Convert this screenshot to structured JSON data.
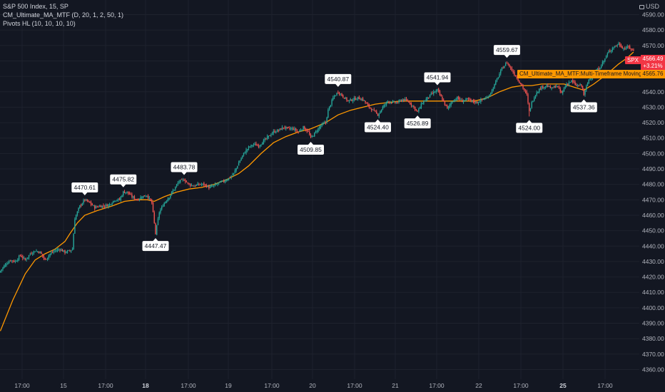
{
  "legend": {
    "symbol": "S&P 500 Index, 15, SP",
    "indicator_ma": "CM_Ultimate_MA_MTF (D, 20, 1, 2, 50, 1)",
    "indicator_pivots": "Pivots HL (10, 10, 10, 10)"
  },
  "currency": "USD",
  "last_price": {
    "symbol_tag": "SPX",
    "price": "4566.49",
    "change": "+3.21%"
  },
  "ma_overlay": {
    "label": "CM_Ultimate_MA_MTF:Multi-Timeframe Moving Avg",
    "price": "4565.76"
  },
  "colors": {
    "background": "#131722",
    "grid": "#1e222d",
    "up": "#26a69a",
    "down": "#ef5350",
    "ma_line": "#ff9800",
    "axis_text": "#b2b5be"
  },
  "chart_data": {
    "type": "line",
    "ylim": [
      4355,
      4595
    ],
    "y_ticks": [
      4360,
      4370,
      4380,
      4390,
      4400,
      4410,
      4420,
      4430,
      4440,
      4450,
      4460,
      4470,
      4480,
      4490,
      4500,
      4510,
      4520,
      4530,
      4540,
      4550,
      4560,
      4570,
      4580,
      4590
    ],
    "x_ticks": [
      "17:00",
      "15",
      "17:00",
      "18",
      "17:00",
      "19",
      "17:00",
      "20",
      "17:00",
      "21",
      "17:00",
      "22",
      "17:00",
      "25",
      "17:00"
    ],
    "x_ticks_bold": [
      "18",
      "25"
    ],
    "price_path": [
      [
        0,
        4424
      ],
      [
        4,
        4428
      ],
      [
        8,
        4431
      ],
      [
        12,
        4430
      ],
      [
        16,
        4434
      ],
      [
        20,
        4431
      ],
      [
        24,
        4435
      ],
      [
        28,
        4437
      ],
      [
        32,
        4436
      ],
      [
        36,
        4431
      ],
      [
        40,
        4435
      ],
      [
        44,
        4437
      ],
      [
        48,
        4438
      ],
      [
        52,
        4436
      ],
      [
        56,
        4437
      ],
      [
        58,
        4438
      ],
      [
        60,
        4458
      ],
      [
        64,
        4466
      ],
      [
        68,
        4470
      ],
      [
        72,
        4468
      ],
      [
        76,
        4465
      ],
      [
        80,
        4466
      ],
      [
        84,
        4466
      ],
      [
        88,
        4467
      ],
      [
        92,
        4470
      ],
      [
        96,
        4470
      ],
      [
        99,
        4475
      ],
      [
        102,
        4475
      ],
      [
        106,
        4472
      ],
      [
        110,
        4470
      ],
      [
        114,
        4472
      ],
      [
        118,
        4473
      ],
      [
        122,
        4468
      ],
      [
        125,
        4448
      ],
      [
        128,
        4462
      ],
      [
        132,
        4468
      ],
      [
        136,
        4472
      ],
      [
        140,
        4477
      ],
      [
        144,
        4482
      ],
      [
        148,
        4483
      ],
      [
        152,
        4480
      ],
      [
        156,
        4479
      ],
      [
        160,
        4480
      ],
      [
        164,
        4480
      ],
      [
        168,
        4478
      ],
      [
        172,
        4479
      ],
      [
        176,
        4481
      ],
      [
        180,
        4482
      ],
      [
        184,
        4484
      ],
      [
        188,
        4487
      ],
      [
        192,
        4494
      ],
      [
        196,
        4500
      ],
      [
        200,
        4504
      ],
      [
        204,
        4506
      ],
      [
        208,
        4505
      ],
      [
        212,
        4508
      ],
      [
        216,
        4511
      ],
      [
        220,
        4514
      ],
      [
        224,
        4515
      ],
      [
        228,
        4517
      ],
      [
        232,
        4516
      ],
      [
        236,
        4516
      ],
      [
        240,
        4514
      ],
      [
        244,
        4517
      ],
      [
        248,
        4514
      ],
      [
        250,
        4510
      ],
      [
        254,
        4514
      ],
      [
        258,
        4518
      ],
      [
        262,
        4520
      ],
      [
        264,
        4528
      ],
      [
        268,
        4536
      ],
      [
        272,
        4540
      ],
      [
        276,
        4537
      ],
      [
        280,
        4534
      ],
      [
        284,
        4535
      ],
      [
        288,
        4536
      ],
      [
        292,
        4535
      ],
      [
        296,
        4531
      ],
      [
        300,
        4528
      ],
      [
        304,
        4525
      ],
      [
        308,
        4530
      ],
      [
        312,
        4534
      ],
      [
        316,
        4533
      ],
      [
        320,
        4533
      ],
      [
        324,
        4535
      ],
      [
        328,
        4534
      ],
      [
        332,
        4531
      ],
      [
        336,
        4527
      ],
      [
        340,
        4533
      ],
      [
        344,
        4536
      ],
      [
        348,
        4539
      ],
      [
        352,
        4541
      ],
      [
        356,
        4535
      ],
      [
        360,
        4529
      ],
      [
        364,
        4534
      ],
      [
        368,
        4536
      ],
      [
        372,
        4534
      ],
      [
        376,
        4535
      ],
      [
        380,
        4534
      ],
      [
        384,
        4533
      ],
      [
        388,
        4535
      ],
      [
        392,
        4536
      ],
      [
        396,
        4541
      ],
      [
        400,
        4548
      ],
      [
        404,
        4555
      ],
      [
        408,
        4559
      ],
      [
        412,
        4554
      ],
      [
        416,
        4549
      ],
      [
        420,
        4544
      ],
      [
        424,
        4538
      ],
      [
        426,
        4527
      ],
      [
        428,
        4533
      ],
      [
        432,
        4540
      ],
      [
        436,
        4543
      ],
      [
        440,
        4544
      ],
      [
        444,
        4542
      ],
      [
        448,
        4544
      ],
      [
        452,
        4539
      ],
      [
        456,
        4545
      ],
      [
        460,
        4547
      ],
      [
        464,
        4544
      ],
      [
        468,
        4544
      ],
      [
        470,
        4538
      ],
      [
        474,
        4548
      ],
      [
        478,
        4552
      ],
      [
        482,
        4555
      ],
      [
        486,
        4560
      ],
      [
        490,
        4566
      ],
      [
        494,
        4569
      ],
      [
        498,
        4571
      ],
      [
        502,
        4568
      ],
      [
        506,
        4569
      ],
      [
        510,
        4566.49
      ]
    ],
    "ma_path": [
      [
        0,
        4385
      ],
      [
        10,
        4405
      ],
      [
        20,
        4422
      ],
      [
        28,
        4431
      ],
      [
        36,
        4435
      ],
      [
        44,
        4438
      ],
      [
        52,
        4443
      ],
      [
        56,
        4448
      ],
      [
        62,
        4455
      ],
      [
        68,
        4460
      ],
      [
        78,
        4463
      ],
      [
        90,
        4466
      ],
      [
        100,
        4469
      ],
      [
        110,
        4470
      ],
      [
        118,
        4470
      ],
      [
        124,
        4469
      ],
      [
        132,
        4472
      ],
      [
        142,
        4475
      ],
      [
        152,
        4477
      ],
      [
        162,
        4478
      ],
      [
        172,
        4480
      ],
      [
        182,
        4483
      ],
      [
        192,
        4487
      ],
      [
        200,
        4492
      ],
      [
        210,
        4500
      ],
      [
        220,
        4507
      ],
      [
        230,
        4511
      ],
      [
        240,
        4514
      ],
      [
        250,
        4516
      ],
      [
        262,
        4520
      ],
      [
        272,
        4525
      ],
      [
        282,
        4528
      ],
      [
        292,
        4530
      ],
      [
        302,
        4532
      ],
      [
        312,
        4533
      ],
      [
        322,
        4534
      ],
      [
        332,
        4534
      ],
      [
        342,
        4534
      ],
      [
        352,
        4534
      ],
      [
        362,
        4534
      ],
      [
        372,
        4534
      ],
      [
        382,
        4534
      ],
      [
        392,
        4536
      ],
      [
        402,
        4540
      ],
      [
        412,
        4543
      ],
      [
        420,
        4544
      ],
      [
        428,
        4544
      ],
      [
        436,
        4545
      ],
      [
        444,
        4545
      ],
      [
        454,
        4545
      ],
      [
        462,
        4543
      ],
      [
        470,
        4541
      ],
      [
        478,
        4545
      ],
      [
        488,
        4551
      ],
      [
        498,
        4558
      ],
      [
        505,
        4562
      ],
      [
        510,
        4565.76
      ]
    ],
    "pivots": [
      {
        "label": "4470.61",
        "t": 68,
        "value": 4470.61,
        "kind": "high"
      },
      {
        "label": "4475.82",
        "t": 99,
        "value": 4475.82,
        "kind": "high"
      },
      {
        "label": "4447.47",
        "t": 125,
        "value": 4447.47,
        "kind": "low"
      },
      {
        "label": "4483.78",
        "t": 148,
        "value": 4483.78,
        "kind": "high"
      },
      {
        "label": "4509.85",
        "t": 250,
        "value": 4509.85,
        "kind": "low"
      },
      {
        "label": "4540.87",
        "t": 272,
        "value": 4540.87,
        "kind": "high"
      },
      {
        "label": "4524.40",
        "t": 304,
        "value": 4524.4,
        "kind": "low"
      },
      {
        "label": "4526.89",
        "t": 336,
        "value": 4526.89,
        "kind": "low"
      },
      {
        "label": "4541.94",
        "t": 352,
        "value": 4541.94,
        "kind": "high"
      },
      {
        "label": "4559.67",
        "t": 408,
        "value": 4559.67,
        "kind": "high"
      },
      {
        "label": "4524.00",
        "t": 426,
        "value": 4524.0,
        "kind": "low"
      },
      {
        "label": "4537.36",
        "t": 470,
        "value": 4537.36,
        "kind": "low"
      }
    ]
  }
}
